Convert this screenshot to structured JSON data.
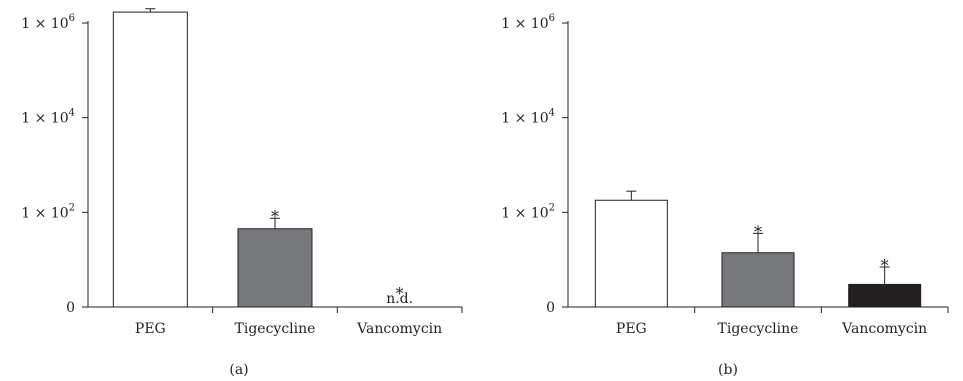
{
  "chart_data": [
    {
      "type": "bar",
      "panel_label": "(a)",
      "categories": [
        "PEG",
        "Tigecycline",
        "Vancomycin"
      ],
      "values": [
        1700000,
        45,
        null
      ],
      "error_upper": [
        2000000,
        75,
        null
      ],
      "significance": [
        "",
        "*",
        "*"
      ],
      "value_labels": [
        "",
        "",
        "n.d."
      ],
      "bar_colors": [
        "#ffffff",
        "#77787b",
        "#ffffff"
      ],
      "yscale": "log",
      "ylim": [
        1,
        1000000
      ],
      "yticks": [
        {
          "value": 1,
          "base": "0",
          "exp": ""
        },
        {
          "value": 100,
          "base": "1 × 10",
          "exp": "2"
        },
        {
          "value": 10000,
          "base": "1 × 10",
          "exp": "4"
        },
        {
          "value": 1000000,
          "base": "1 × 10",
          "exp": "6"
        }
      ],
      "title": "",
      "xlabel": "",
      "ylabel": ""
    },
    {
      "type": "bar",
      "panel_label": "(b)",
      "categories": [
        "PEG",
        "Tigecycline",
        "Vancomycin"
      ],
      "values": [
        180,
        14,
        3
      ],
      "error_upper": [
        280,
        36,
        7
      ],
      "significance": [
        "",
        "*",
        "*"
      ],
      "value_labels": [
        "",
        "",
        ""
      ],
      "bar_colors": [
        "#ffffff",
        "#77787b",
        "#231f20"
      ],
      "yscale": "log",
      "ylim": [
        1,
        1000000
      ],
      "yticks": [
        {
          "value": 1,
          "base": "0",
          "exp": ""
        },
        {
          "value": 100,
          "base": "1 × 10",
          "exp": "2"
        },
        {
          "value": 10000,
          "base": "1 × 10",
          "exp": "4"
        },
        {
          "value": 1000000,
          "base": "1 × 10",
          "exp": "6"
        }
      ],
      "title": "",
      "xlabel": "",
      "ylabel": ""
    }
  ]
}
